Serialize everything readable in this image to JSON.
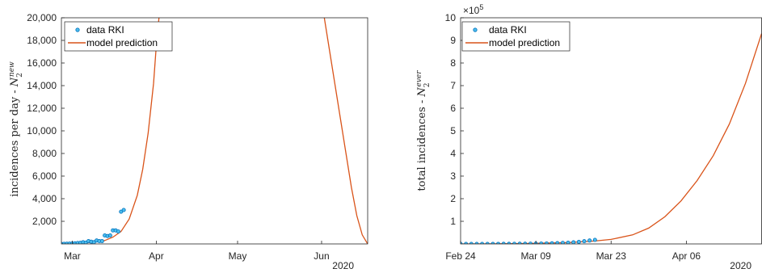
{
  "chart_data": [
    {
      "type": "line",
      "ylabel_text": "incidences per day - ",
      "ylabel_sym": "N",
      "ylabel_sub": "2",
      "ylabel_sup": "new",
      "xlim": [
        "2020-02-26",
        "2020-06-18"
      ],
      "ylim": [
        0,
        20000
      ],
      "yticks": [
        2000,
        4000,
        6000,
        8000,
        10000,
        12000,
        14000,
        16000,
        18000,
        20000
      ],
      "ytick_labels": [
        "2,000",
        "4,000",
        "6,000",
        "8,000",
        "10,000",
        "12,000",
        "14,000",
        "16,000",
        "18,000",
        "20,000"
      ],
      "xticks": [
        "2020-03-01",
        "2020-04-01",
        "2020-05-01",
        "2020-06-01"
      ],
      "xtick_labels": [
        "Mar",
        "Apr",
        "May",
        "Jun"
      ],
      "year_label": "2020",
      "legend": [
        "data RKI",
        "model prediction"
      ],
      "legend_position": "top-left",
      "series": [
        {
          "name": "data RKI",
          "kind": "scatter",
          "x": [
            "2020-02-26",
            "2020-02-27",
            "2020-02-28",
            "2020-02-29",
            "2020-03-01",
            "2020-03-02",
            "2020-03-03",
            "2020-03-04",
            "2020-03-05",
            "2020-03-06",
            "2020-03-07",
            "2020-03-08",
            "2020-03-09",
            "2020-03-10",
            "2020-03-11",
            "2020-03-12",
            "2020-03-13",
            "2020-03-14",
            "2020-03-15",
            "2020-03-16",
            "2020-03-17",
            "2020-03-18",
            "2020-03-19",
            "2020-03-20"
          ],
          "y": [
            0,
            10,
            20,
            30,
            40,
            50,
            80,
            100,
            150,
            120,
            250,
            200,
            150,
            300,
            250,
            250,
            750,
            700,
            750,
            1200,
            1200,
            1100,
            2850,
            3000
          ]
        },
        {
          "name": "model prediction",
          "kind": "line",
          "x": [
            "2020-02-26",
            "2020-03-01",
            "2020-03-05",
            "2020-03-09",
            "2020-03-13",
            "2020-03-16",
            "2020-03-19",
            "2020-03-22",
            "2020-03-25",
            "2020-03-27",
            "2020-03-29",
            "2020-03-31",
            "2020-04-01",
            "2020-04-02",
            "2020-06-02",
            "2020-06-04",
            "2020-06-06",
            "2020-06-08",
            "2020-06-10",
            "2020-06-12",
            "2020-06-14",
            "2020-06-16",
            "2020-06-18"
          ],
          "y": [
            20,
            40,
            80,
            150,
            300,
            600,
            1100,
            2200,
            4300,
            6600,
            9800,
            14200,
            17500,
            20000,
            20000,
            17000,
            14000,
            11000,
            8000,
            5000,
            2500,
            800,
            0
          ]
        }
      ]
    },
    {
      "type": "line",
      "ylabel_text": "total incidences - ",
      "ylabel_sym": "N",
      "ylabel_sub": "2",
      "ylabel_sup": "ever",
      "exponent_base": "×10",
      "exponent_power": "5",
      "xlim": [
        "2020-02-24",
        "2020-04-20"
      ],
      "ylim": [
        0,
        10
      ],
      "yticks": [
        1,
        2,
        3,
        4,
        5,
        6,
        7,
        8,
        9,
        10
      ],
      "ytick_labels": [
        "1",
        "2",
        "3",
        "4",
        "5",
        "6",
        "7",
        "8",
        "9",
        "10"
      ],
      "xticks": [
        "2020-02-24",
        "2020-03-09",
        "2020-03-23",
        "2020-04-06"
      ],
      "xtick_labels": [
        "Feb 24",
        "Mar 09",
        "Mar 23",
        "Apr 06"
      ],
      "year_label": "2020",
      "legend": [
        "data RKI",
        "model prediction"
      ],
      "legend_position": "top-left",
      "series": [
        {
          "name": "data RKI",
          "kind": "scatter",
          "x": [
            "2020-02-24",
            "2020-02-25",
            "2020-02-26",
            "2020-02-27",
            "2020-02-28",
            "2020-02-29",
            "2020-03-01",
            "2020-03-02",
            "2020-03-03",
            "2020-03-04",
            "2020-03-05",
            "2020-03-06",
            "2020-03-07",
            "2020-03-08",
            "2020-03-09",
            "2020-03-10",
            "2020-03-11",
            "2020-03-12",
            "2020-03-13",
            "2020-03-14",
            "2020-03-15",
            "2020-03-16",
            "2020-03-17",
            "2020-03-18",
            "2020-03-19",
            "2020-03-20"
          ],
          "y": [
            0,
            0,
            0,
            0.001,
            0.001,
            0.001,
            0.002,
            0.002,
            0.003,
            0.004,
            0.005,
            0.007,
            0.008,
            0.01,
            0.012,
            0.015,
            0.02,
            0.025,
            0.035,
            0.045,
            0.055,
            0.07,
            0.09,
            0.12,
            0.15,
            0.18
          ]
        },
        {
          "name": "model prediction",
          "kind": "line",
          "x": [
            "2020-02-24",
            "2020-03-01",
            "2020-03-08",
            "2020-03-15",
            "2020-03-20",
            "2020-03-23",
            "2020-03-27",
            "2020-03-30",
            "2020-04-02",
            "2020-04-05",
            "2020-04-08",
            "2020-04-11",
            "2020-04-14",
            "2020-04-17",
            "2020-04-20"
          ],
          "y": [
            0,
            0.005,
            0.02,
            0.06,
            0.13,
            0.2,
            0.4,
            0.7,
            1.2,
            1.9,
            2.8,
            3.9,
            5.3,
            7.1,
            9.3
          ]
        }
      ]
    }
  ]
}
